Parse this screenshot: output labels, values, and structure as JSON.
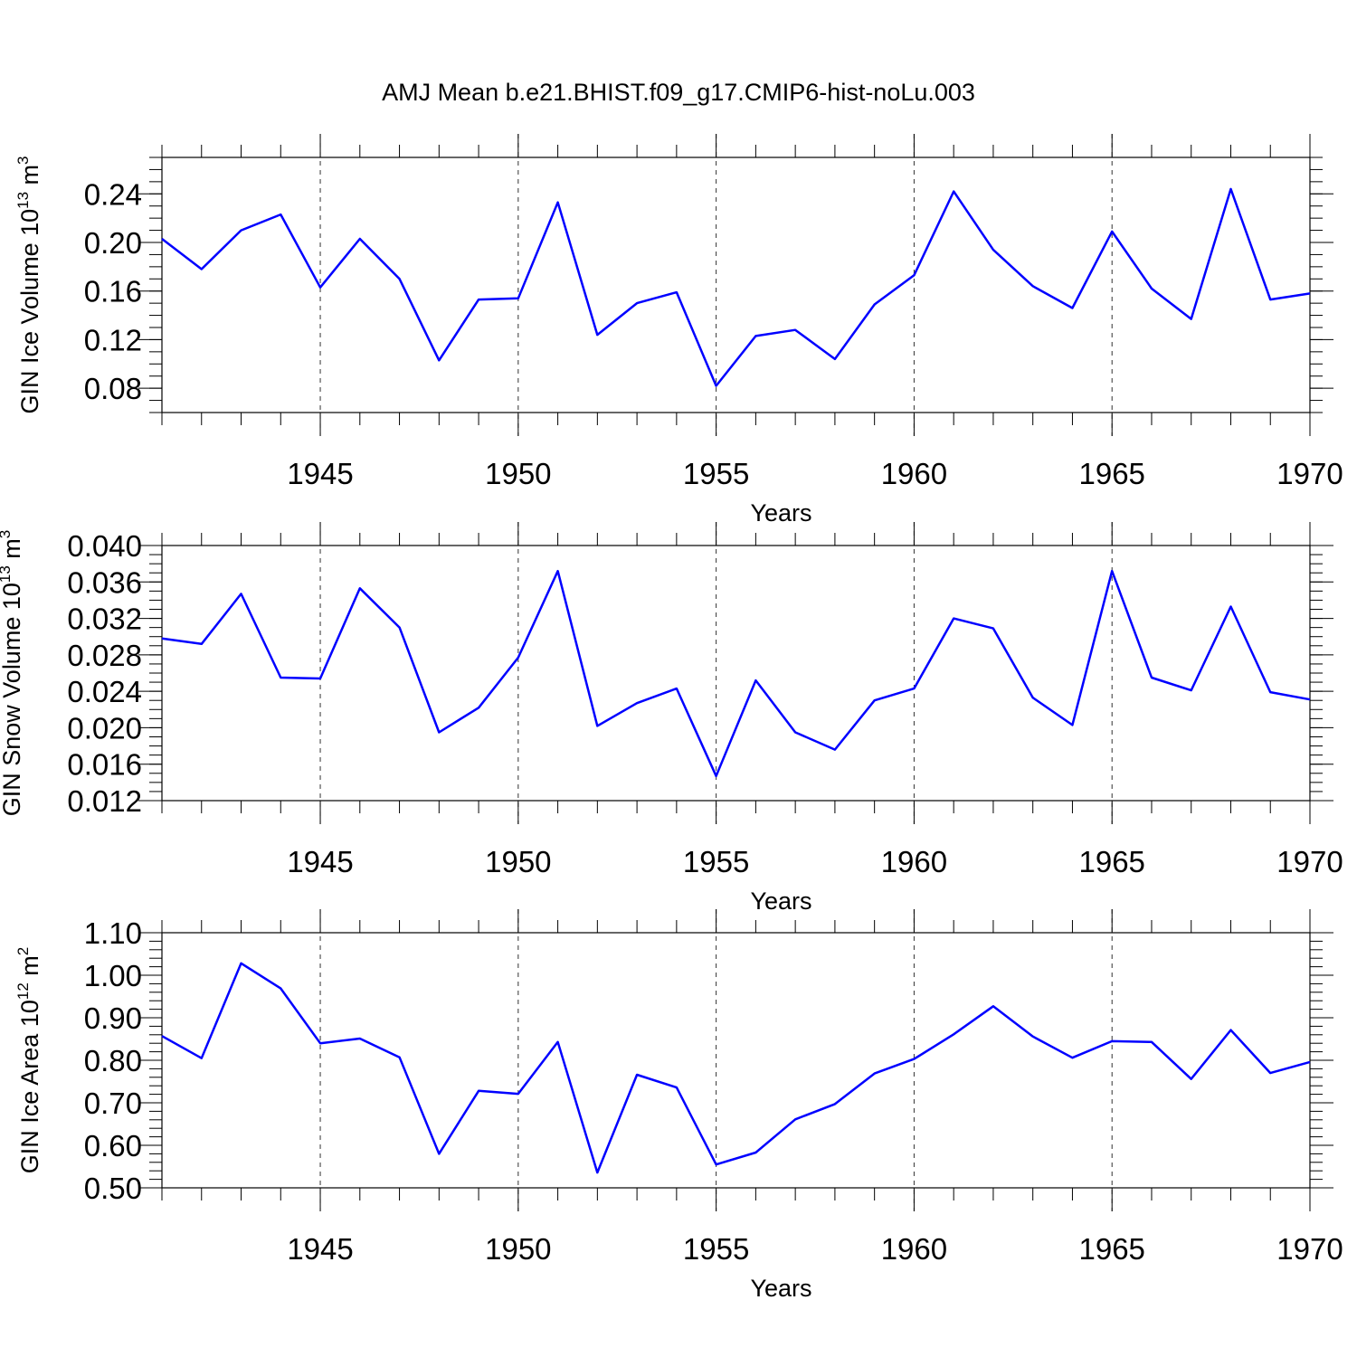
{
  "title": "AMJ Mean b.e21.BHIST.f09_g17.CMIP6-hist-noLu.003",
  "colors": {
    "series": "#0000ff",
    "axis": "#000000"
  },
  "chart_data": [
    {
      "type": "line",
      "title": "AMJ Mean b.e21.BHIST.f09_g17.CMIP6-hist-noLu.003",
      "ylabel": "GIN Ice Volume 10",
      "ylabel_exp": "13",
      "ylabel_unit": " m",
      "ylabel_unit_exp": "3",
      "xlabel": "Years",
      "xlim": [
        1941,
        1970
      ],
      "ylim": [
        0.06,
        0.27
      ],
      "yticks": [
        0.08,
        0.12,
        0.16,
        0.2,
        0.24
      ],
      "ytick_labels": [
        "0.08",
        "0.12",
        "0.16",
        "0.20",
        "0.24"
      ],
      "xticks": [
        1945,
        1950,
        1955,
        1960,
        1965,
        1970
      ],
      "xtick_labels": [
        "1945",
        "1950",
        "1955",
        "1960",
        "1965",
        "1970"
      ],
      "yminor_step": 0.01,
      "x": [
        1941,
        1942,
        1943,
        1944,
        1945,
        1946,
        1947,
        1948,
        1949,
        1950,
        1951,
        1952,
        1953,
        1954,
        1955,
        1956,
        1957,
        1958,
        1959,
        1960,
        1961,
        1962,
        1963,
        1964,
        1965,
        1966,
        1967,
        1968,
        1969,
        1970
      ],
      "values": [
        0.203,
        0.178,
        0.21,
        0.223,
        0.163,
        0.203,
        0.17,
        0.103,
        0.153,
        0.154,
        0.233,
        0.124,
        0.15,
        0.159,
        0.082,
        0.123,
        0.128,
        0.104,
        0.149,
        0.173,
        0.242,
        0.194,
        0.164,
        0.146,
        0.209,
        0.162,
        0.137,
        0.244,
        0.153,
        0.158
      ]
    },
    {
      "type": "line",
      "ylabel": "GIN Snow Volume 10",
      "ylabel_exp": "13",
      "ylabel_unit": " m",
      "ylabel_unit_exp": "3",
      "xlabel": "Years",
      "xlim": [
        1941,
        1970
      ],
      "ylim": [
        0.012,
        0.04
      ],
      "yticks": [
        0.012,
        0.016,
        0.02,
        0.024,
        0.028,
        0.032,
        0.036,
        0.04
      ],
      "ytick_labels": [
        "0.012",
        "0.016",
        "0.020",
        "0.024",
        "0.028",
        "0.032",
        "0.036",
        "0.040"
      ],
      "xticks": [
        1945,
        1950,
        1955,
        1960,
        1965,
        1970
      ],
      "xtick_labels": [
        "1945",
        "1950",
        "1955",
        "1960",
        "1965",
        "1970"
      ],
      "yminor_step": 0.001,
      "x": [
        1941,
        1942,
        1943,
        1944,
        1945,
        1946,
        1947,
        1948,
        1949,
        1950,
        1951,
        1952,
        1953,
        1954,
        1955,
        1956,
        1957,
        1958,
        1959,
        1960,
        1961,
        1962,
        1963,
        1964,
        1965,
        1966,
        1967,
        1968,
        1969,
        1970
      ],
      "values": [
        0.0298,
        0.0292,
        0.0347,
        0.0255,
        0.0254,
        0.0353,
        0.031,
        0.0195,
        0.0222,
        0.0277,
        0.0372,
        0.0202,
        0.0227,
        0.0243,
        0.0147,
        0.0252,
        0.0195,
        0.0176,
        0.023,
        0.0243,
        0.032,
        0.0309,
        0.0233,
        0.0203,
        0.0372,
        0.0255,
        0.0241,
        0.0333,
        0.0239,
        0.0231
      ]
    },
    {
      "type": "line",
      "ylabel": "GIN Ice Area 10",
      "ylabel_exp": "12",
      "ylabel_unit": " m",
      "ylabel_unit_exp": "2",
      "xlabel": "Years",
      "xlim": [
        1941,
        1970
      ],
      "ylim": [
        0.5,
        1.1
      ],
      "yticks": [
        0.5,
        0.6,
        0.7,
        0.8,
        0.9,
        1.0,
        1.1
      ],
      "ytick_labels": [
        "0.50",
        "0.60",
        "0.70",
        "0.80",
        "0.90",
        "1.00",
        "1.10"
      ],
      "xticks": [
        1945,
        1950,
        1955,
        1960,
        1965,
        1970
      ],
      "xtick_labels": [
        "1945",
        "1950",
        "1955",
        "1960",
        "1965",
        "1970"
      ],
      "yminor_step": 0.02,
      "x": [
        1941,
        1942,
        1943,
        1944,
        1945,
        1946,
        1947,
        1948,
        1949,
        1950,
        1951,
        1952,
        1953,
        1954,
        1955,
        1956,
        1957,
        1958,
        1959,
        1960,
        1961,
        1962,
        1963,
        1964,
        1965,
        1966,
        1967,
        1968,
        1969,
        1970
      ],
      "values": [
        0.857,
        0.805,
        1.028,
        0.969,
        0.84,
        0.851,
        0.807,
        0.58,
        0.728,
        0.721,
        0.843,
        0.536,
        0.766,
        0.736,
        0.555,
        0.583,
        0.661,
        0.697,
        0.769,
        0.803,
        0.861,
        0.927,
        0.856,
        0.806,
        0.845,
        0.843,
        0.756,
        0.871,
        0.77,
        0.796
      ]
    }
  ]
}
